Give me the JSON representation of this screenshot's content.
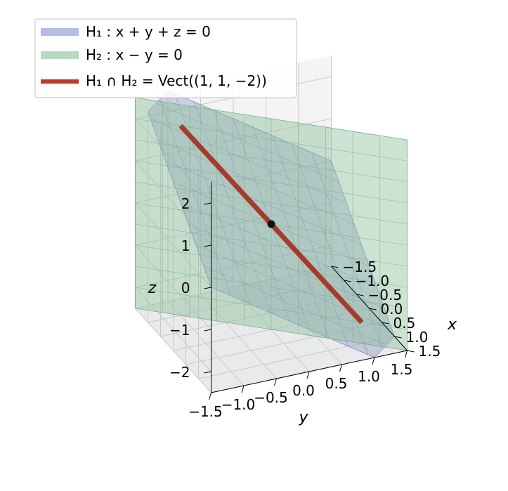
{
  "chart_data": {
    "type": "3d-surface",
    "title": "",
    "axes": {
      "x": {
        "label": "x",
        "ticks": [
          "−1.5",
          "−1.0",
          "−0.5",
          "0.0",
          "0.5",
          "1.0",
          "1.5"
        ],
        "lim": [
          -1.5,
          1.5
        ]
      },
      "y": {
        "label": "y",
        "ticks": [
          "−1.5",
          "−1.0",
          "−0.5",
          "0.0",
          "0.5",
          "1.0",
          "1.5"
        ],
        "lim": [
          -1.5,
          1.5
        ]
      },
      "z": {
        "label": "z",
        "ticks": [
          "−2",
          "−1",
          "0",
          "1",
          "2"
        ],
        "lim": [
          -2.5,
          2.5
        ]
      }
    },
    "grid": true,
    "legend": {
      "placement": "top-left",
      "entries": [
        {
          "label": "H₁ : x + y + z = 0",
          "color": "#b3bde6"
        },
        {
          "label": "H₂ : x − y = 0",
          "color": "#b7d9c2"
        },
        {
          "label": "H₁ ∩ H₂ = Vect((1, 1, −2))",
          "color": "#c0392b"
        }
      ]
    },
    "series": [
      {
        "name": "H₁ : x + y + z = 0",
        "kind": "plane",
        "normal": [
          1,
          1,
          1
        ],
        "offset": 0,
        "color": "#8f98c4",
        "alpha": 0.4
      },
      {
        "name": "H₂ : x − y = 0",
        "kind": "plane",
        "normal": [
          1,
          -1,
          0
        ],
        "offset": 0,
        "color": "#8fbf9c",
        "alpha": 0.45
      },
      {
        "name": "H₁ ∩ H₂ = Vect((1, 1, −2))",
        "kind": "line",
        "direction": [
          1,
          1,
          -2
        ],
        "range": [
          -1,
          1
        ],
        "color": "#a63a2b"
      },
      {
        "kind": "point",
        "coords": [
          0,
          0,
          0
        ],
        "color": "#111111"
      }
    ]
  }
}
